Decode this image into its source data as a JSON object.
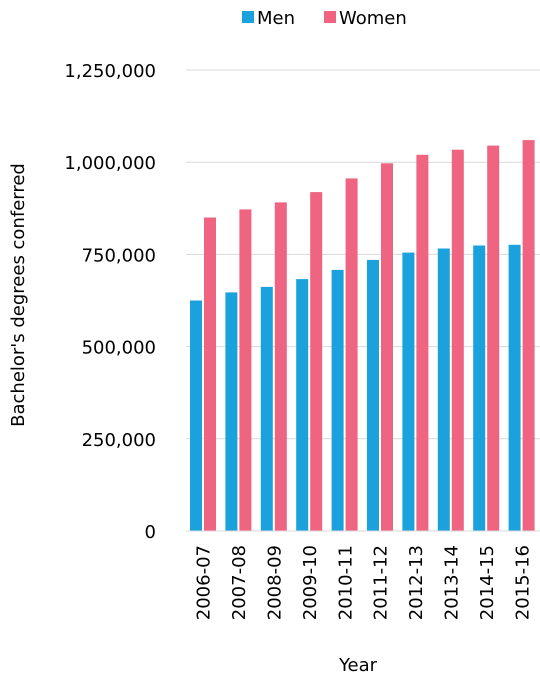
{
  "chart_data": {
    "type": "bar",
    "title": "",
    "xlabel": "Year",
    "ylabel": "Bachelor's degrees conferred",
    "categories": [
      "2006-07",
      "2007-08",
      "2008-09",
      "2009-10",
      "2010-11",
      "2011-12",
      "2012-13",
      "2013-14",
      "2014-15",
      "2015-16"
    ],
    "series": [
      {
        "name": "Men",
        "color": "#1ba1dc",
        "values": [
          625000,
          647000,
          662000,
          683000,
          708000,
          735000,
          755000,
          766000,
          774000,
          776000
        ]
      },
      {
        "name": "Women",
        "color": "#ef6480",
        "values": [
          850000,
          872000,
          891000,
          919000,
          956000,
          997000,
          1020000,
          1034000,
          1045000,
          1060000
        ]
      }
    ],
    "ylim": [
      0,
      1250000
    ],
    "yticks": [
      0,
      250000,
      500000,
      750000,
      1000000,
      1250000
    ],
    "ytick_labels": [
      "0",
      "250,000",
      "500,000",
      "750,000",
      "1,000,000",
      "1,250,000"
    ],
    "grid": true,
    "legend_position": "top-center"
  }
}
